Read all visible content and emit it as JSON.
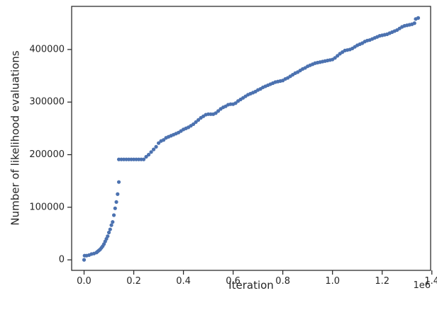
{
  "chart_data": {
    "type": "scatter",
    "xlabel": "Iteration",
    "ylabel": "Number of likelihood evaluations",
    "x_offset_label": "1e6",
    "xlim": [
      -50000,
      1395000
    ],
    "ylim": [
      -20000,
      482000
    ],
    "x_ticks": [
      0,
      200000,
      400000,
      600000,
      800000,
      1000000,
      1200000,
      1400000
    ],
    "x_tick_labels": [
      "0.0",
      "0.2",
      "0.4",
      "0.6",
      "0.8",
      "1.0",
      "1.2",
      "1.4"
    ],
    "y_ticks": [
      0,
      100000,
      200000,
      300000,
      400000
    ],
    "y_tick_labels": [
      "0",
      "100000",
      "200000",
      "300000",
      "400000"
    ],
    "grid": false,
    "marker_color": "#4c72b0",
    "points": [
      [
        0,
        0
      ],
      [
        2000,
        8000
      ],
      [
        10000,
        8000
      ],
      [
        20000,
        9000
      ],
      [
        30000,
        11000
      ],
      [
        40000,
        12000
      ],
      [
        50000,
        14000
      ],
      [
        55000,
        16000
      ],
      [
        60000,
        18000
      ],
      [
        65000,
        20000
      ],
      [
        70000,
        23000
      ],
      [
        75000,
        26000
      ],
      [
        80000,
        30000
      ],
      [
        85000,
        35000
      ],
      [
        90000,
        40000
      ],
      [
        95000,
        45000
      ],
      [
        100000,
        52000
      ],
      [
        105000,
        58000
      ],
      [
        110000,
        66000
      ],
      [
        115000,
        72000
      ],
      [
        120000,
        85000
      ],
      [
        125000,
        98000
      ],
      [
        130000,
        110000
      ],
      [
        135000,
        125000
      ],
      [
        140000,
        148000
      ],
      [
        140000,
        191000
      ],
      [
        150000,
        191000
      ],
      [
        160000,
        191000
      ],
      [
        170000,
        191000
      ],
      [
        180000,
        191000
      ],
      [
        190000,
        191000
      ],
      [
        200000,
        191000
      ],
      [
        210000,
        191000
      ],
      [
        220000,
        191000
      ],
      [
        230000,
        191000
      ],
      [
        240000,
        191000
      ],
      [
        250000,
        196000
      ],
      [
        260000,
        200000
      ],
      [
        270000,
        205000
      ],
      [
        280000,
        210000
      ],
      [
        290000,
        215000
      ],
      [
        300000,
        222000
      ],
      [
        310000,
        226000
      ],
      [
        320000,
        228000
      ],
      [
        330000,
        232000
      ],
      [
        340000,
        234000
      ],
      [
        350000,
        236000
      ],
      [
        360000,
        238000
      ],
      [
        370000,
        240000
      ],
      [
        380000,
        242000
      ],
      [
        390000,
        245000
      ],
      [
        400000,
        248000
      ],
      [
        410000,
        250000
      ],
      [
        420000,
        252000
      ],
      [
        430000,
        255000
      ],
      [
        440000,
        258000
      ],
      [
        450000,
        262000
      ],
      [
        460000,
        266000
      ],
      [
        470000,
        270000
      ],
      [
        480000,
        273000
      ],
      [
        490000,
        276000
      ],
      [
        500000,
        277000
      ],
      [
        510000,
        277000
      ],
      [
        520000,
        277000
      ],
      [
        530000,
        279000
      ],
      [
        540000,
        283000
      ],
      [
        550000,
        287000
      ],
      [
        560000,
        290000
      ],
      [
        570000,
        292000
      ],
      [
        580000,
        295000
      ],
      [
        590000,
        296000
      ],
      [
        600000,
        296000
      ],
      [
        610000,
        298000
      ],
      [
        620000,
        302000
      ],
      [
        630000,
        305000
      ],
      [
        640000,
        308000
      ],
      [
        650000,
        311000
      ],
      [
        660000,
        314000
      ],
      [
        670000,
        316000
      ],
      [
        680000,
        318000
      ],
      [
        690000,
        320000
      ],
      [
        700000,
        323000
      ],
      [
        710000,
        325000
      ],
      [
        720000,
        328000
      ],
      [
        730000,
        330000
      ],
      [
        740000,
        332000
      ],
      [
        750000,
        334000
      ],
      [
        760000,
        336000
      ],
      [
        770000,
        338000
      ],
      [
        780000,
        339000
      ],
      [
        790000,
        340000
      ],
      [
        800000,
        341000
      ],
      [
        810000,
        344000
      ],
      [
        820000,
        346000
      ],
      [
        830000,
        349000
      ],
      [
        840000,
        352000
      ],
      [
        850000,
        355000
      ],
      [
        860000,
        357000
      ],
      [
        870000,
        360000
      ],
      [
        880000,
        363000
      ],
      [
        890000,
        365000
      ],
      [
        900000,
        368000
      ],
      [
        910000,
        370000
      ],
      [
        920000,
        372000
      ],
      [
        930000,
        374000
      ],
      [
        940000,
        375000
      ],
      [
        950000,
        376000
      ],
      [
        960000,
        377000
      ],
      [
        970000,
        378000
      ],
      [
        980000,
        379000
      ],
      [
        990000,
        380000
      ],
      [
        1000000,
        381000
      ],
      [
        1010000,
        384000
      ],
      [
        1020000,
        388000
      ],
      [
        1030000,
        392000
      ],
      [
        1040000,
        395000
      ],
      [
        1050000,
        398000
      ],
      [
        1060000,
        399000
      ],
      [
        1070000,
        400000
      ],
      [
        1080000,
        402000
      ],
      [
        1090000,
        405000
      ],
      [
        1100000,
        408000
      ],
      [
        1110000,
        410000
      ],
      [
        1120000,
        412000
      ],
      [
        1130000,
        415000
      ],
      [
        1140000,
        417000
      ],
      [
        1150000,
        418000
      ],
      [
        1160000,
        420000
      ],
      [
        1170000,
        422000
      ],
      [
        1180000,
        424000
      ],
      [
        1190000,
        426000
      ],
      [
        1200000,
        427000
      ],
      [
        1210000,
        428000
      ],
      [
        1220000,
        429000
      ],
      [
        1230000,
        431000
      ],
      [
        1240000,
        433000
      ],
      [
        1250000,
        435000
      ],
      [
        1260000,
        437000
      ],
      [
        1270000,
        440000
      ],
      [
        1280000,
        443000
      ],
      [
        1290000,
        445000
      ],
      [
        1300000,
        446000
      ],
      [
        1310000,
        447000
      ],
      [
        1320000,
        448000
      ],
      [
        1330000,
        450000
      ],
      [
        1335000,
        458000
      ],
      [
        1345000,
        460000
      ]
    ]
  }
}
